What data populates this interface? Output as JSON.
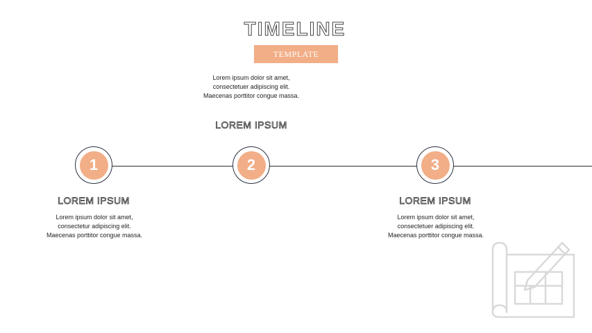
{
  "title": "TIMELINE",
  "subtitle": "TEMPLATE",
  "steps": [
    {
      "number": "1",
      "heading": "LOREM IPSUM",
      "text": "Lorem ipsum dolor sit amet, consectetur adipiscing elit. Maecenas porttitor congue massa."
    },
    {
      "number": "2",
      "heading": "LOREM IPSUM",
      "text": "Lorem ipsum dolor sit amet, consectetuer adipiscing elit. Maecenas porttitor congue massa."
    },
    {
      "number": "3",
      "heading": "LOREM IPSUM",
      "text": "Lorem ipsum dolor sit amet, consectetuer adipiscing elit. Maecenas porttitor congue massa."
    }
  ],
  "colors": {
    "accent": "#F2AE87",
    "ring": "#2A3140",
    "line": "#2B2B2B",
    "icon": "#D9D9D9"
  },
  "icons": {
    "decoration": "blueprint-pencil-icon"
  }
}
